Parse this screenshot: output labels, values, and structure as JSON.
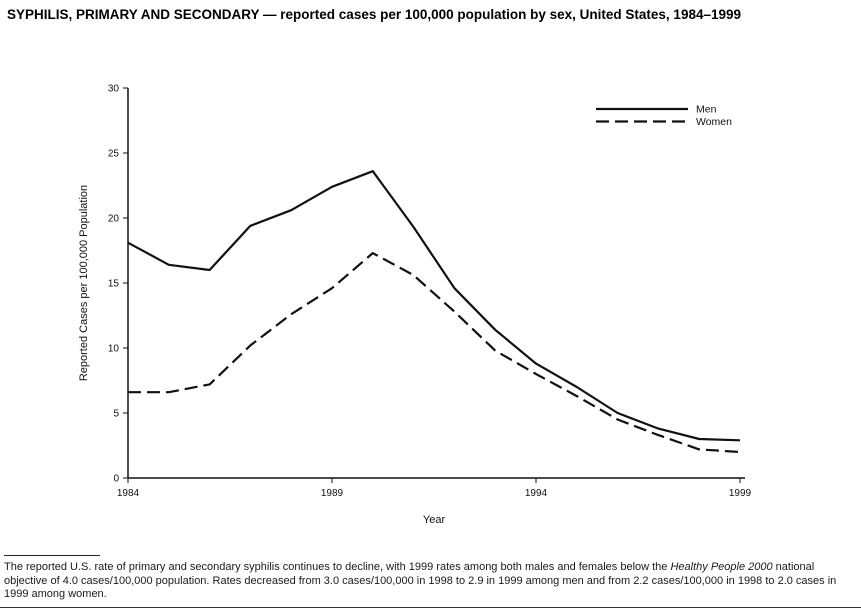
{
  "page": {
    "title": "SYPHILIS, PRIMARY AND SECONDARY — reported cases per 100,000 population by sex, United States, 1984–1999"
  },
  "chart_data": {
    "type": "line",
    "title": "",
    "xlabel": "Year",
    "ylabel": "Reported Cases per 100,000 Population",
    "xlim": [
      1984,
      1999
    ],
    "ylim": [
      0,
      30
    ],
    "x_ticks": [
      1984,
      1989,
      1994,
      1999
    ],
    "y_ticks": [
      0,
      5,
      10,
      15,
      20,
      25,
      30
    ],
    "grid": false,
    "legend_position": "upper-right",
    "line_color": "#111111",
    "x": [
      1984,
      1985,
      1986,
      1987,
      1988,
      1989,
      1990,
      1991,
      1992,
      1993,
      1994,
      1995,
      1996,
      1997,
      1998,
      1999
    ],
    "series": [
      {
        "name": "Men",
        "line_style": "solid",
        "values": [
          18.1,
          16.4,
          16.0,
          19.4,
          20.6,
          22.4,
          23.6,
          19.3,
          14.6,
          11.4,
          8.8,
          7.0,
          5.0,
          3.8,
          3.0,
          2.9
        ]
      },
      {
        "name": "Women",
        "line_style": "dashed",
        "values": [
          6.6,
          6.6,
          7.2,
          10.2,
          12.6,
          14.6,
          17.3,
          15.6,
          12.8,
          9.8,
          8.0,
          6.3,
          4.5,
          3.3,
          2.2,
          2.0
        ]
      }
    ]
  },
  "caption": {
    "text_before_italic": "The reported U.S. rate of primary and secondary syphilis continues to decline, with 1999 rates among both males and females below the ",
    "italic": "Healthy People 2000",
    "text_after_italic": " national objective of 4.0 cases/100,000 population. Rates decreased from 3.0 cases/100,000 in 1998 to 2.9 in 1999 among men and from 2.2 cases/100,000 in 1998 to 2.0 cases in 1999 among women."
  }
}
